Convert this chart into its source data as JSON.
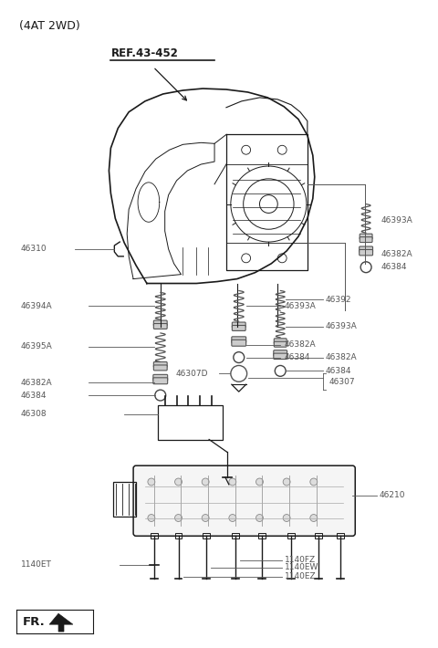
{
  "title": "(4AT 2WD)",
  "bg_color": "#ffffff",
  "line_color": "#1a1a1a",
  "label_color": "#555555",
  "ref_label": "REF.43-452",
  "fr_label": "FR.",
  "figsize": [
    4.8,
    7.1
  ],
  "dpi": 100
}
